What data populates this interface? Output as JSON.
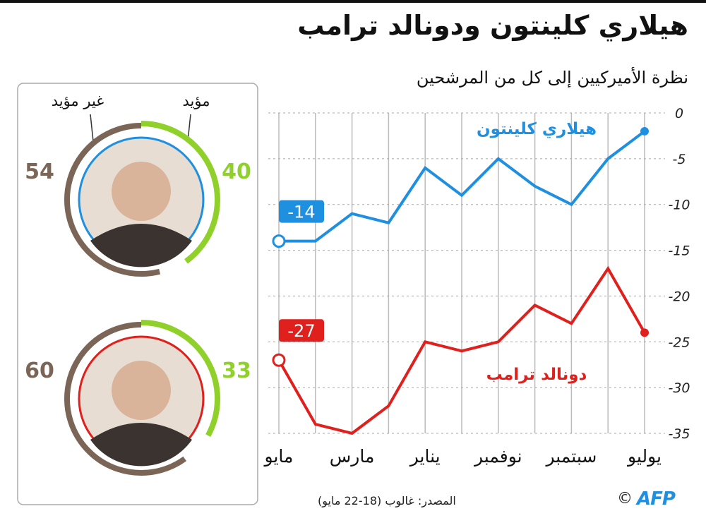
{
  "title": "هيلاري كلينتون ودونالد ترامب",
  "subtitle": "نظرة الأميركيين إلى كل من المرشحين",
  "source": "المصدر: غالوب (18-22 مايو)",
  "credit": "©",
  "logo": "AFP",
  "chart_data": [
    {
      "type": "line",
      "categories": [
        "يوليو",
        null,
        "سبتمبر",
        null,
        "نوفمبر",
        null,
        "يناير",
        null,
        "مارس",
        null,
        "مايو"
      ],
      "series": [
        {
          "name": "هيلاري كلينتون",
          "color": "#1f8fe0",
          "values": [
            -2,
            -5,
            -10,
            -8,
            -5,
            -9,
            -6,
            -12,
            -11,
            -14,
            -14
          ]
        },
        {
          "name": "دونالد ترامب",
          "color": "#e0201c",
          "values": [
            -24,
            -17,
            -23,
            -21,
            -25,
            -26,
            -25,
            -32,
            -35,
            -34,
            -27
          ]
        }
      ],
      "ylim": [
        -35,
        0
      ],
      "yticks": [
        0,
        -5,
        -10,
        -15,
        -20,
        -25,
        -30,
        -35
      ],
      "grid": true
    },
    {
      "type": "gauge",
      "labels": [
        "مؤيد",
        "غير مؤيد"
      ],
      "colors": [
        "#8fd12a",
        "#7b6557"
      ],
      "rows": [
        {
          "values": [
            40,
            54
          ]
        },
        {
          "values": [
            33,
            60
          ]
        }
      ]
    }
  ]
}
